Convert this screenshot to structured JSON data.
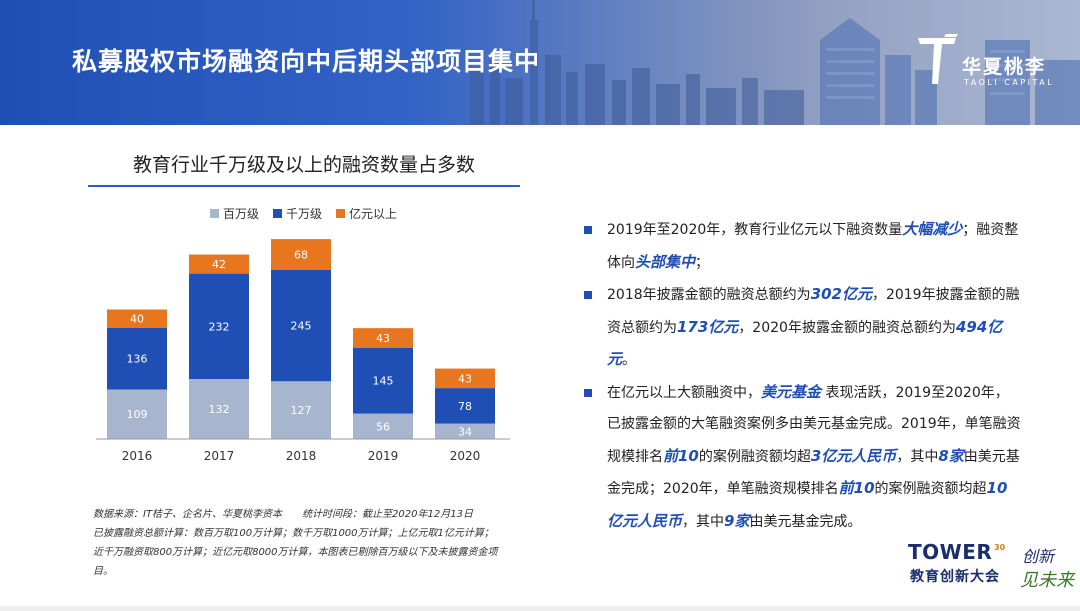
{
  "header": {
    "title": "私募股权市场融资向中后期头部项目集中",
    "logo_name": "华夏桃李",
    "logo_sub": "TAOLI CAPITAL"
  },
  "colors": {
    "banner": "#1f4fb4",
    "accent": "#2a5cc4",
    "series_million": "#a7b5cf",
    "series_ten_million": "#1f4fb4",
    "series_hundred_million": "#e8761f"
  },
  "chart_data": {
    "type": "bar",
    "stacked": true,
    "title": "教育行业千万级及以上的融资数量占多数",
    "categories": [
      "2016",
      "2017",
      "2018",
      "2019",
      "2020"
    ],
    "series": [
      {
        "name": "百万级",
        "color": "#a7b5cf",
        "values": [
          109,
          132,
          127,
          56,
          34
        ]
      },
      {
        "name": "千万级",
        "color": "#1f4fb4",
        "values": [
          136,
          232,
          245,
          145,
          78
        ]
      },
      {
        "name": "亿元以上",
        "color": "#e8761f",
        "values": [
          40,
          42,
          68,
          43,
          43
        ]
      }
    ],
    "legend_position": "top",
    "grid": false,
    "ylim": [
      0,
      460
    ]
  },
  "notes": {
    "source": "数据来源：IT桔子、企名片、华夏桃李资本",
    "period": "统计时间段：截止至2020年12月13日",
    "line2": "已披露融资总额计算：数百万取100万计算；数千万取1000万计算；上亿元取1亿元计算；",
    "line3": "近千万融资取800万计算；近亿元取8000万计算，本图表已剔除百万级以下及未披露资金项",
    "line4": "目。"
  },
  "bullets": {
    "b1": {
      "t1": "2019年至2020年，教育行业亿元以下融资数量",
      "h1": "大幅减少",
      "t2": "；融资整体向",
      "h2": "头部集中",
      "t3": "；"
    },
    "b2": {
      "t1": "2018年披露金额的融资总额约为",
      "h1": "302亿元",
      "t2": "，2019年披露金额的融资总额约为",
      "h2": "173亿元",
      "t3": "，2020年披露金额的融资总额约为",
      "h3": "494亿元",
      "t4": "。"
    },
    "b3": {
      "t1": "在亿元以上大额融资中，",
      "h1": "美元基金",
      "t2": " 表现活跃，2019至2020年，已披露金额的大笔融资案例多由美元基金完成。2019年，单笔融资规模排名",
      "h2": "前10",
      "t3": "的案例融资额均超",
      "h3": "3亿元人民币",
      "t4": "，其中",
      "h4": "8家",
      "t5": "由美元基金完成；2020年，单笔融资规模排名",
      "h5": "前10",
      "t6": "的案例融资额均超",
      "h6": "10亿元人民币",
      "t7": "，其中",
      "h7": "9家",
      "t8": "由美元基金完成。"
    }
  },
  "branding": {
    "tower_word": "TOWER",
    "tower_small": "30",
    "tower_sub": "教育创新大会",
    "script_a": "创新",
    "script_b": "见未来"
  }
}
